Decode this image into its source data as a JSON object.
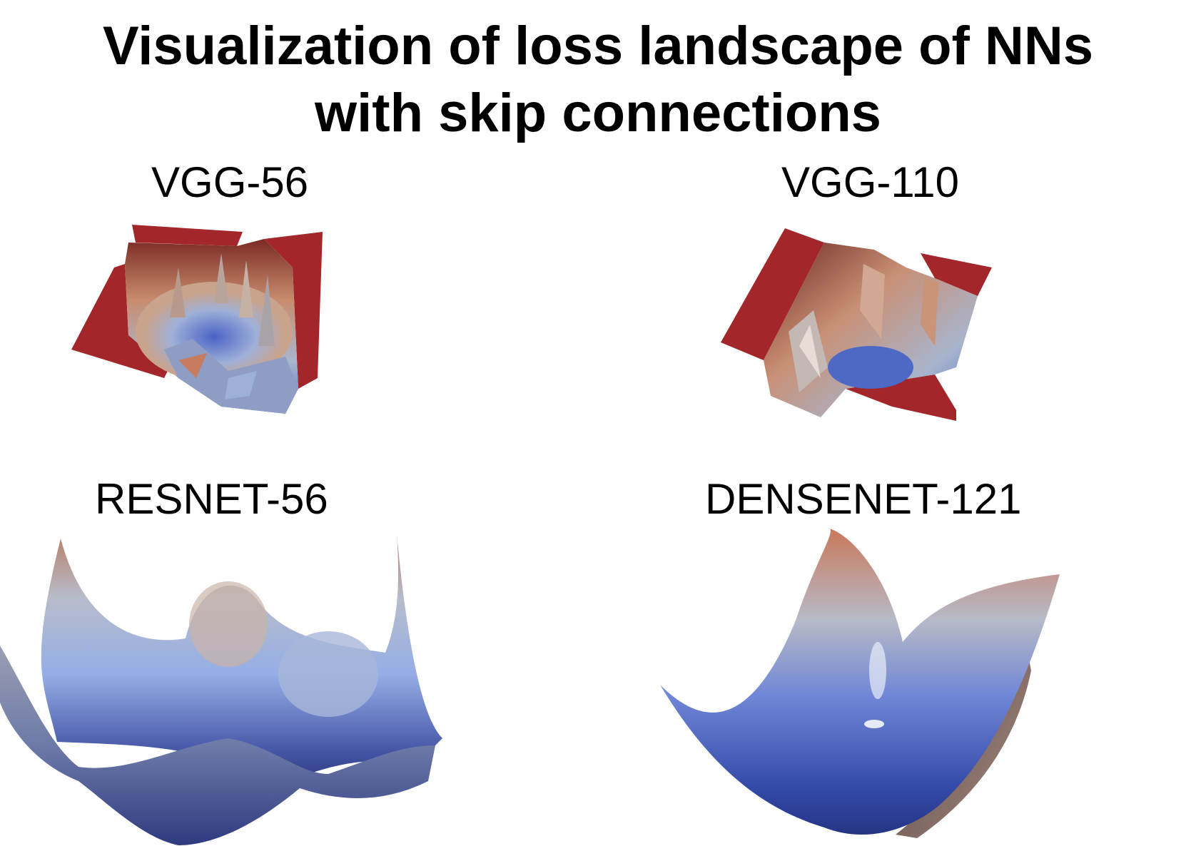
{
  "title": {
    "line1": "Visualization of loss landscape of NNs",
    "line2": "with skip connections"
  },
  "panels": {
    "vgg56": {
      "label": "VGG-56"
    },
    "vgg110": {
      "label": "VGG-110"
    },
    "resnet56": {
      "label": "RESNET-56"
    },
    "densenet121": {
      "label": "DENSENET-121"
    }
  },
  "colors": {
    "plateau_red": "#a3262a",
    "valley_blue": "#3b55b8",
    "mid_gray": "#aeb8c8",
    "peak_orange": "#c97a5a"
  }
}
